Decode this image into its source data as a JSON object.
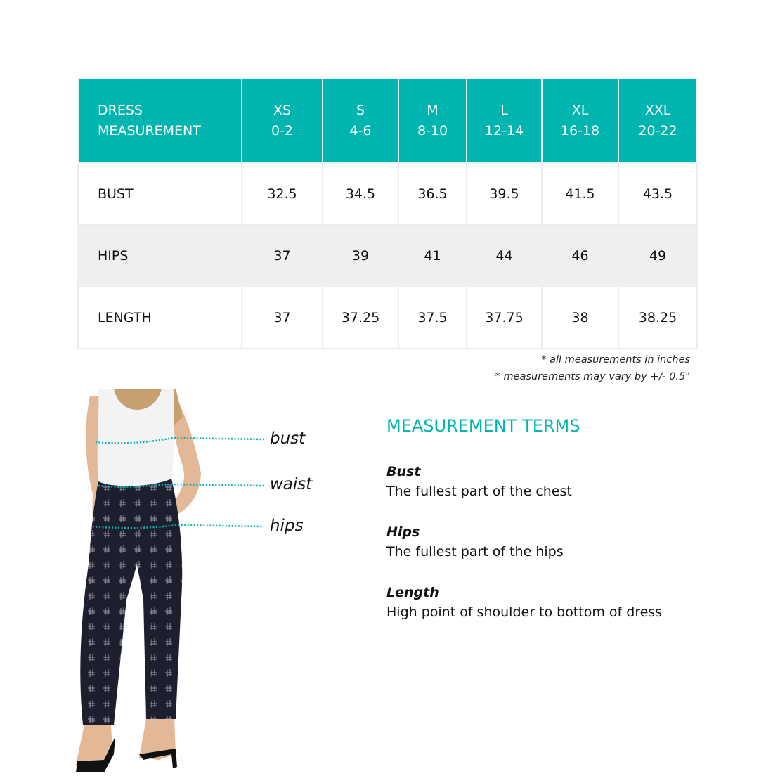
{
  "table": {
    "header_label": [
      "DRESS",
      "MEASUREMENT"
    ],
    "sizes": [
      {
        "size": "XS",
        "range": "0-2"
      },
      {
        "size": "S",
        "range": "4-6"
      },
      {
        "size": "M",
        "range": "8-10"
      },
      {
        "size": "L",
        "range": "12-14"
      },
      {
        "size": "XL",
        "range": "16-18"
      },
      {
        "size": "XXL",
        "range": "20-22"
      }
    ],
    "rows": [
      {
        "label": "BUST",
        "values": [
          "32.5",
          "34.5",
          "36.5",
          "39.5",
          "41.5",
          "43.5"
        ]
      },
      {
        "label": "HIPS",
        "values": [
          "37",
          "39",
          "41",
          "44",
          "46",
          "49"
        ]
      },
      {
        "label": "LENGTH",
        "values": [
          "37",
          "37.25",
          "37.5",
          "37.75",
          "38",
          "38.25"
        ]
      }
    ]
  },
  "notes": [
    "* all measurements in inches",
    "* measurements may vary by +/- 0.5\""
  ],
  "figure_labels": {
    "bust": "bust",
    "waist": "waist",
    "hips": "hips"
  },
  "terms": {
    "title": "MEASUREMENT TERMS",
    "items": [
      {
        "term": "Bust",
        "definition": "The fullest part of the chest"
      },
      {
        "term": "Hips",
        "definition": "The fullest part of the hips"
      },
      {
        "term": "Length",
        "definition": "High point of shoulder to bottom of dress"
      }
    ]
  },
  "colors": {
    "accent": "#00b5b0",
    "alt_row": "#efefef"
  }
}
